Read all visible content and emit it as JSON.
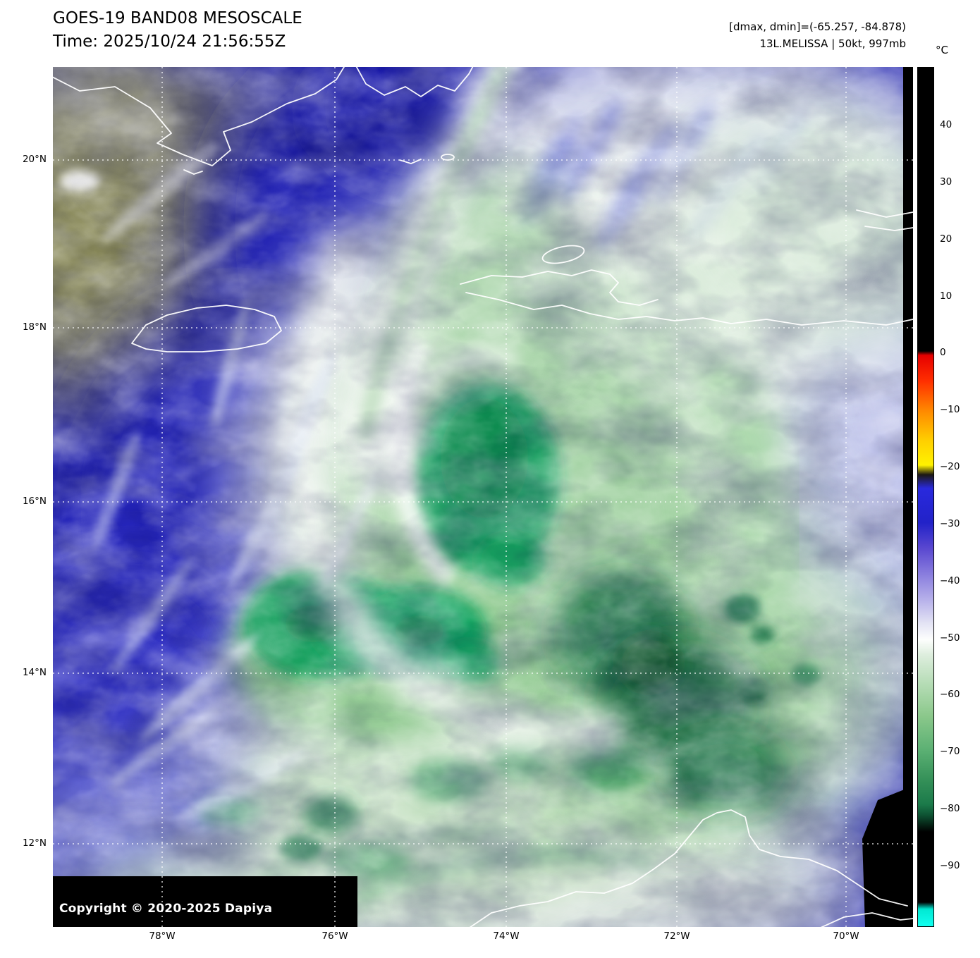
{
  "header": {
    "title": "GOES-19 BAND08 MESOSCALE",
    "time_line": "Time: 2025/10/24 21:56:55Z",
    "range_line": "[dmax, dmin]=(-65.257, -84.878)",
    "storm_line": "13L.MELISSA | 50kt, 997mb"
  },
  "map": {
    "copyright": "Copyright © 2020-2025 Dapiya",
    "lat_labels": [
      "20°N",
      "18°N",
      "16°N",
      "14°N",
      "12°N"
    ],
    "lon_labels": [
      "78°W",
      "76°W",
      "74°W",
      "72°W",
      "70°W"
    ]
  },
  "colorbar": {
    "unit": "°C",
    "tick_labels": [
      "40",
      "30",
      "20",
      "10",
      "0",
      "−10",
      "−20",
      "−30",
      "−40",
      "−50",
      "−60",
      "−70",
      "−80",
      "−90"
    ],
    "palette": {
      "warm": "#000000",
      "red": "#e60000",
      "yellow": "#fff200",
      "blue": "#2222c8",
      "purple": "#9186e0",
      "white": "#ffffff",
      "green": "#349058",
      "dark_green": "#0e5434",
      "cyan": "#12fff0"
    }
  }
}
